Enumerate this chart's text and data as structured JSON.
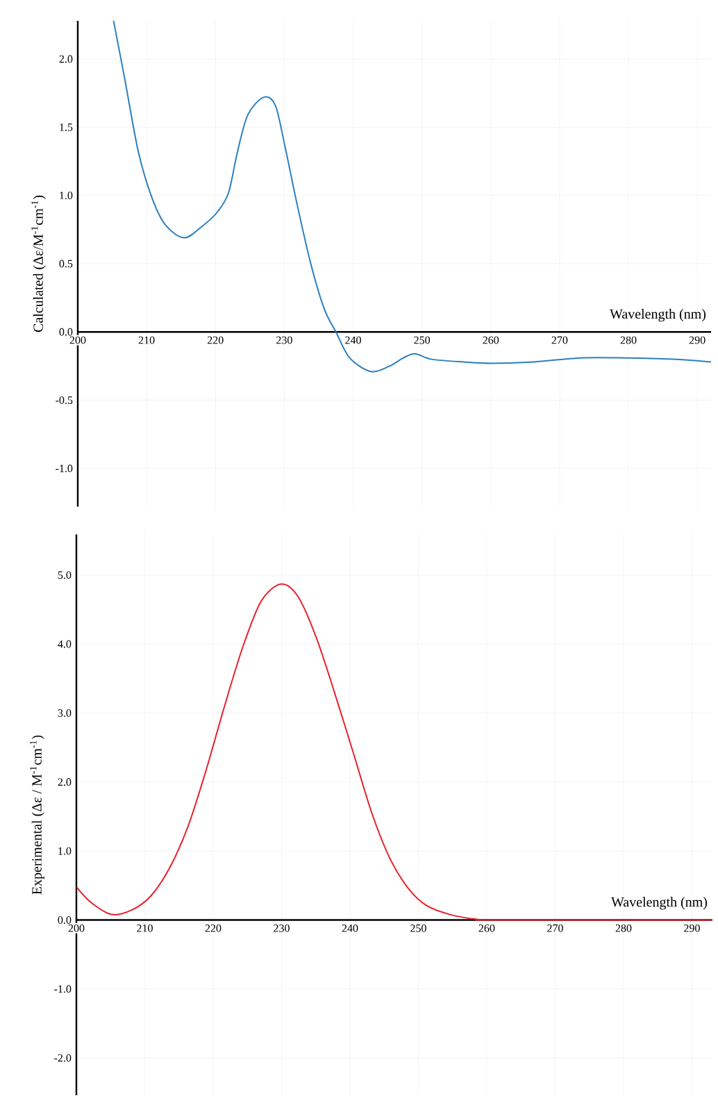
{
  "chart_data": [
    {
      "type": "line",
      "xlabel": "Wavelength (nm)",
      "ylabel": "Calculated (Δε/M$^{-1}$cm$^{-1}$)",
      "xlim": [
        200,
        292
      ],
      "ylim": [
        -1.28,
        2.28
      ],
      "grid": true,
      "xticks": [
        200,
        210,
        220,
        230,
        240,
        250,
        260,
        270,
        280,
        290
      ],
      "yticks": [
        {
          "value": -1.0,
          "label": "-1.0"
        },
        {
          "value": -0.5,
          "label": "-0.5"
        },
        {
          "value": 0.0,
          "label": "0.0"
        },
        {
          "value": 0.5,
          "label": "0.5"
        },
        {
          "value": 1.0,
          "label": "1.0"
        },
        {
          "value": 1.5,
          "label": "1.5"
        },
        {
          "value": 2.0,
          "label": "2.0"
        }
      ],
      "series": [
        {
          "color": "#2a7fc0",
          "x": [
            205.2,
            206.8,
            208.8,
            210.8,
            212.8,
            215.5,
            218.2,
            220.3,
            221.9,
            223.2,
            224.7,
            227.0,
            228.7,
            230.1,
            231.8,
            233.8,
            235.8,
            237.5,
            239.5,
            242.6,
            245.3,
            247.3,
            249.0,
            251.4,
            256.1,
            260.1,
            266.2,
            273.0,
            279.7,
            286.5,
            292
          ],
          "values": [
            2.28,
            1.86,
            1.32,
            0.98,
            0.78,
            0.69,
            0.78,
            0.88,
            1.02,
            1.32,
            1.59,
            1.72,
            1.66,
            1.36,
            0.95,
            0.51,
            0.17,
            0.0,
            -0.19,
            -0.29,
            -0.25,
            -0.19,
            -0.16,
            -0.2,
            -0.22,
            -0.23,
            -0.22,
            -0.19,
            -0.19,
            -0.2,
            -0.22
          ]
        }
      ]
    },
    {
      "type": "line",
      "xlabel": "Wavelength (nm)",
      "ylabel": "Experimental (Δε / M$^{-1}$cm$^{-1}$)",
      "xlim": [
        200,
        293
      ],
      "ylim": [
        -2.54,
        5.59
      ],
      "grid": true,
      "xticks": [
        200,
        210,
        220,
        230,
        240,
        250,
        260,
        270,
        280,
        290
      ],
      "yticks": [
        {
          "value": -2.0,
          "label": "-2.0"
        },
        {
          "value": -1.0,
          "label": "-1.0"
        },
        {
          "value": 0.0,
          "label": "0.0"
        },
        {
          "value": 1.0,
          "label": "1.0"
        },
        {
          "value": 2.0,
          "label": "2.0"
        },
        {
          "value": 3.0,
          "label": "3.0"
        },
        {
          "value": 4.0,
          "label": "4.0"
        },
        {
          "value": 5.0,
          "label": "5.0"
        }
      ],
      "series": [
        {
          "color": "#e8202a",
          "x": [
            200,
            202.2,
            205.2,
            208.2,
            210.9,
            213.6,
            216.3,
            218.9,
            221.6,
            224.3,
            227.0,
            229.9,
            232.4,
            235.1,
            237.8,
            240.5,
            243.2,
            245.9,
            248.6,
            251.2,
            254.6,
            258.6,
            261.4,
            293
          ],
          "values": [
            0.48,
            0.25,
            0.08,
            0.15,
            0.35,
            0.75,
            1.35,
            2.15,
            3.08,
            3.95,
            4.62,
            4.87,
            4.69,
            4.09,
            3.28,
            2.42,
            1.55,
            0.88,
            0.45,
            0.21,
            0.08,
            0.01,
            0.0,
            0.0
          ]
        }
      ]
    }
  ]
}
